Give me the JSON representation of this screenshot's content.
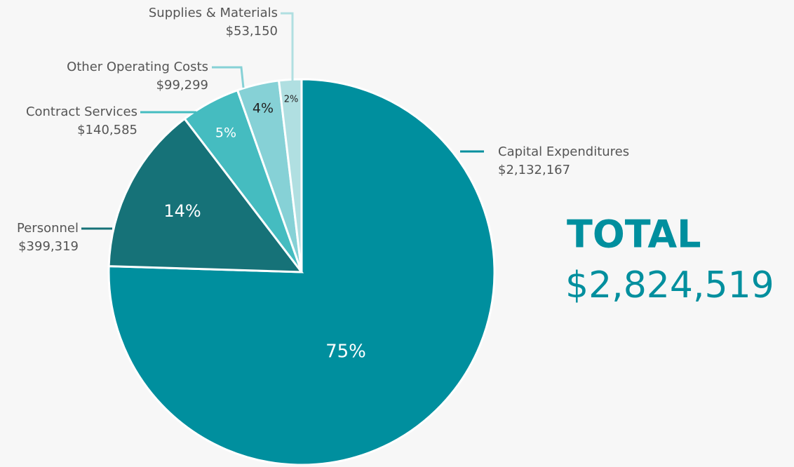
{
  "chart_data": {
    "type": "pie",
    "categories": [
      "Capital Expenditures",
      "Personnel",
      "Contract Services",
      "Other Operating Costs",
      "Supplies & Materials"
    ],
    "values": [
      2132167,
      399319,
      140585,
      99299,
      53150
    ],
    "value_labels": [
      "$2,132,167",
      "$399,319",
      "$140,585",
      "$99,299",
      "$53,150"
    ],
    "percent_labels": [
      "75%",
      "14%",
      "5%",
      "4%",
      "2%"
    ],
    "colors": [
      "#008f9e",
      "#167278",
      "#45bcc0",
      "#86d1d6",
      "#b0dfe1"
    ],
    "total_label": "TOTAL",
    "total": "$2,824,519"
  }
}
